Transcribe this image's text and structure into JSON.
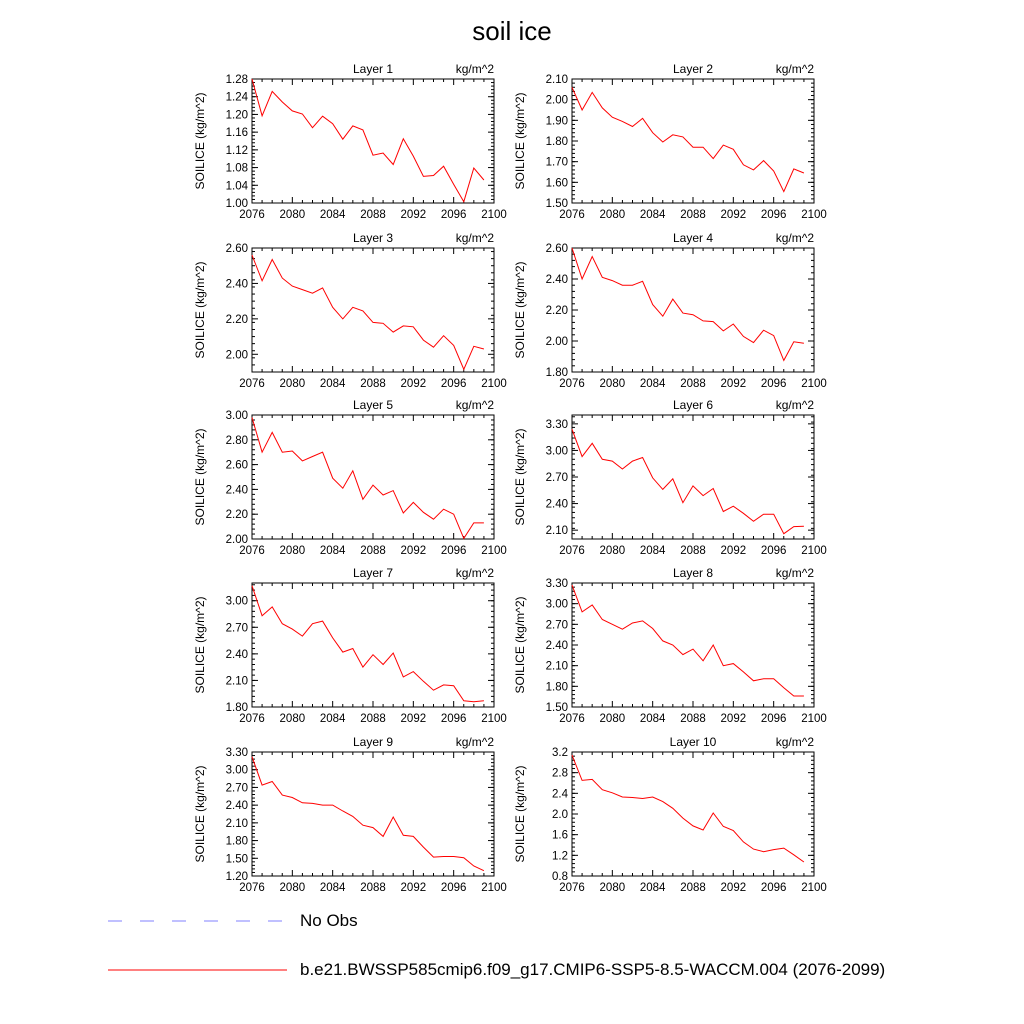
{
  "title": "soil ice",
  "colors": {
    "model_line": "#ff0000",
    "obs_line": "#8080ff",
    "axis": "#000000"
  },
  "legend": {
    "obs_label": "No Obs",
    "model_label": "b.e21.BWSSP585cmip6.f09_g17.CMIP6-SSP5-8.5-WACCM.004 (2076-2099)"
  },
  "chart_data": [
    {
      "type": "line",
      "title": "Layer 1",
      "units": "kg/m^2",
      "ylabel": "SOILICE  (kg/m^2)",
      "xlim": [
        2076,
        2100
      ],
      "xticks": [
        2076,
        2080,
        2084,
        2088,
        2092,
        2096,
        2100
      ],
      "ylim": [
        1.0,
        1.28
      ],
      "yticks": [
        "1.00",
        "1.04",
        "1.08",
        "1.12",
        "1.16",
        "1.20",
        "1.24",
        "1.28"
      ],
      "x": [
        2076,
        2077,
        2078,
        2079,
        2080,
        2081,
        2082,
        2083,
        2084,
        2085,
        2086,
        2087,
        2088,
        2089,
        2090,
        2091,
        2092,
        2093,
        2094,
        2095,
        2096,
        2097,
        2098,
        2099
      ],
      "values": [
        1.28,
        1.197,
        1.252,
        1.228,
        1.208,
        1.201,
        1.17,
        1.196,
        1.179,
        1.144,
        1.174,
        1.165,
        1.108,
        1.113,
        1.087,
        1.145,
        1.106,
        1.06,
        1.062,
        1.083,
        1.042,
        1.003,
        1.079,
        1.052
      ]
    },
    {
      "type": "line",
      "title": "Layer 2",
      "units": "kg/m^2",
      "ylabel": "SOILICE  (kg/m^2)",
      "xlim": [
        2076,
        2100
      ],
      "xticks": [
        2076,
        2080,
        2084,
        2088,
        2092,
        2096,
        2100
      ],
      "ylim": [
        1.5,
        2.1
      ],
      "yticks": [
        "1.50",
        "1.60",
        "1.70",
        "1.80",
        "1.90",
        "2.00",
        "2.10"
      ],
      "x": [
        2076,
        2077,
        2078,
        2079,
        2080,
        2081,
        2082,
        2083,
        2084,
        2085,
        2086,
        2087,
        2088,
        2089,
        2090,
        2091,
        2092,
        2093,
        2094,
        2095,
        2096,
        2097,
        2098,
        2099
      ],
      "values": [
        2.06,
        1.95,
        2.035,
        1.96,
        1.915,
        1.895,
        1.87,
        1.91,
        1.84,
        1.795,
        1.83,
        1.82,
        1.77,
        1.77,
        1.715,
        1.78,
        1.76,
        1.685,
        1.66,
        1.705,
        1.655,
        1.555,
        1.665,
        1.645
      ]
    },
    {
      "type": "line",
      "title": "Layer 3",
      "units": "kg/m^2",
      "ylabel": "SOILICE  (kg/m^2)",
      "xlim": [
        2076,
        2100
      ],
      "xticks": [
        2076,
        2080,
        2084,
        2088,
        2092,
        2096,
        2100
      ],
      "ylim": [
        1.9,
        2.6
      ],
      "yticks": [
        "2.00",
        "2.20",
        "2.40",
        "2.60"
      ],
      "x": [
        2076,
        2077,
        2078,
        2079,
        2080,
        2081,
        2082,
        2083,
        2084,
        2085,
        2086,
        2087,
        2088,
        2089,
        2090,
        2091,
        2092,
        2093,
        2094,
        2095,
        2096,
        2097,
        2098,
        2099
      ],
      "values": [
        2.56,
        2.415,
        2.535,
        2.43,
        2.385,
        2.365,
        2.345,
        2.375,
        2.265,
        2.2,
        2.265,
        2.245,
        2.18,
        2.175,
        2.125,
        2.16,
        2.155,
        2.08,
        2.04,
        2.105,
        2.05,
        1.915,
        2.045,
        2.03
      ]
    },
    {
      "type": "line",
      "title": "Layer 4",
      "units": "kg/m^2",
      "ylabel": "SOILICE  (kg/m^2)",
      "xlim": [
        2076,
        2100
      ],
      "xticks": [
        2076,
        2080,
        2084,
        2088,
        2092,
        2096,
        2100
      ],
      "ylim": [
        1.8,
        2.6
      ],
      "yticks": [
        "1.80",
        "2.00",
        "2.20",
        "2.40",
        "2.60"
      ],
      "x": [
        2076,
        2077,
        2078,
        2079,
        2080,
        2081,
        2082,
        2083,
        2084,
        2085,
        2086,
        2087,
        2088,
        2089,
        2090,
        2091,
        2092,
        2093,
        2094,
        2095,
        2096,
        2097,
        2098,
        2099
      ],
      "values": [
        2.6,
        2.4,
        2.545,
        2.41,
        2.39,
        2.36,
        2.36,
        2.385,
        2.235,
        2.16,
        2.27,
        2.18,
        2.17,
        2.13,
        2.125,
        2.065,
        2.11,
        2.03,
        1.99,
        2.07,
        2.035,
        1.875,
        1.995,
        1.985
      ]
    },
    {
      "type": "line",
      "title": "Layer 5",
      "units": "kg/m^2",
      "ylabel": "SOILICE  (kg/m^2)",
      "xlim": [
        2076,
        2100
      ],
      "xticks": [
        2076,
        2080,
        2084,
        2088,
        2092,
        2096,
        2100
      ],
      "ylim": [
        2.0,
        3.0
      ],
      "yticks": [
        "2.00",
        "2.20",
        "2.40",
        "2.60",
        "2.80",
        "3.00"
      ],
      "x": [
        2076,
        2077,
        2078,
        2079,
        2080,
        2081,
        2082,
        2083,
        2084,
        2085,
        2086,
        2087,
        2088,
        2089,
        2090,
        2091,
        2092,
        2093,
        2094,
        2095,
        2096,
        2097,
        2098,
        2099
      ],
      "values": [
        2.98,
        2.7,
        2.86,
        2.7,
        2.71,
        2.63,
        2.665,
        2.7,
        2.49,
        2.41,
        2.55,
        2.32,
        2.435,
        2.355,
        2.39,
        2.21,
        2.295,
        2.215,
        2.16,
        2.24,
        2.2,
        2.005,
        2.13,
        2.13
      ]
    },
    {
      "type": "line",
      "title": "Layer 6",
      "units": "kg/m^2",
      "ylabel": "SOILICE  (kg/m^2)",
      "xlim": [
        2076,
        2100
      ],
      "xticks": [
        2076,
        2080,
        2084,
        2088,
        2092,
        2096,
        2100
      ],
      "ylim": [
        2.0,
        3.4
      ],
      "yticks": [
        "2.10",
        "2.40",
        "2.70",
        "3.00",
        "3.30"
      ],
      "x": [
        2076,
        2077,
        2078,
        2079,
        2080,
        2081,
        2082,
        2083,
        2084,
        2085,
        2086,
        2087,
        2088,
        2089,
        2090,
        2091,
        2092,
        2093,
        2094,
        2095,
        2096,
        2097,
        2098,
        2099
      ],
      "values": [
        3.24,
        2.93,
        3.08,
        2.9,
        2.88,
        2.79,
        2.88,
        2.92,
        2.69,
        2.56,
        2.68,
        2.41,
        2.6,
        2.49,
        2.57,
        2.31,
        2.37,
        2.29,
        2.2,
        2.28,
        2.28,
        2.06,
        2.14,
        2.145
      ]
    },
    {
      "type": "line",
      "title": "Layer 7",
      "units": "kg/m^2",
      "ylabel": "SOILICE  (kg/m^2)",
      "xlim": [
        2076,
        2100
      ],
      "xticks": [
        2076,
        2080,
        2084,
        2088,
        2092,
        2096,
        2100
      ],
      "ylim": [
        1.8,
        3.2
      ],
      "yticks": [
        "1.80",
        "2.10",
        "2.40",
        "2.70",
        "3.00"
      ],
      "x": [
        2076,
        2077,
        2078,
        2079,
        2080,
        2081,
        2082,
        2083,
        2084,
        2085,
        2086,
        2087,
        2088,
        2089,
        2090,
        2091,
        2092,
        2093,
        2094,
        2095,
        2096,
        2097,
        2098,
        2099
      ],
      "values": [
        3.17,
        2.83,
        2.93,
        2.74,
        2.68,
        2.6,
        2.74,
        2.77,
        2.58,
        2.42,
        2.46,
        2.25,
        2.39,
        2.28,
        2.41,
        2.14,
        2.2,
        2.09,
        1.99,
        2.05,
        2.04,
        1.87,
        1.86,
        1.87
      ]
    },
    {
      "type": "line",
      "title": "Layer 8",
      "units": "kg/m^2",
      "ylabel": "SOILICE  (kg/m^2)",
      "xlim": [
        2076,
        2100
      ],
      "xticks": [
        2076,
        2080,
        2084,
        2088,
        2092,
        2096,
        2100
      ],
      "ylim": [
        1.5,
        3.3
      ],
      "yticks": [
        "1.50",
        "1.80",
        "2.10",
        "2.40",
        "2.70",
        "3.00",
        "3.30"
      ],
      "x": [
        2076,
        2077,
        2078,
        2079,
        2080,
        2081,
        2082,
        2083,
        2084,
        2085,
        2086,
        2087,
        2088,
        2089,
        2090,
        2091,
        2092,
        2093,
        2094,
        2095,
        2096,
        2097,
        2098,
        2099
      ],
      "values": [
        3.27,
        2.88,
        2.98,
        2.77,
        2.7,
        2.63,
        2.72,
        2.75,
        2.64,
        2.46,
        2.4,
        2.26,
        2.34,
        2.17,
        2.4,
        2.1,
        2.13,
        2.01,
        1.88,
        1.91,
        1.91,
        1.78,
        1.66,
        1.66
      ]
    },
    {
      "type": "line",
      "title": "Layer 9",
      "units": "kg/m^2",
      "ylabel": "SOILICE  (kg/m^2)",
      "xlim": [
        2076,
        2100
      ],
      "xticks": [
        2076,
        2080,
        2084,
        2088,
        2092,
        2096,
        2100
      ],
      "ylim": [
        1.2,
        3.3
      ],
      "yticks": [
        "1.20",
        "1.50",
        "1.80",
        "2.10",
        "2.40",
        "2.70",
        "3.00",
        "3.30"
      ],
      "x": [
        2076,
        2077,
        2078,
        2079,
        2080,
        2081,
        2082,
        2083,
        2084,
        2085,
        2086,
        2087,
        2088,
        2089,
        2090,
        2091,
        2092,
        2093,
        2094,
        2095,
        2096,
        2097,
        2098,
        2099
      ],
      "values": [
        3.22,
        2.74,
        2.8,
        2.57,
        2.53,
        2.44,
        2.43,
        2.4,
        2.4,
        2.3,
        2.21,
        2.06,
        2.02,
        1.87,
        2.2,
        1.89,
        1.87,
        1.69,
        1.52,
        1.53,
        1.53,
        1.51,
        1.37,
        1.29
      ]
    },
    {
      "type": "line",
      "title": "Layer 10",
      "units": "kg/m^2",
      "ylabel": "SOILICE  (kg/m^2)",
      "xlim": [
        2076,
        2100
      ],
      "xticks": [
        2076,
        2080,
        2084,
        2088,
        2092,
        2096,
        2100
      ],
      "ylim": [
        0.8,
        3.2
      ],
      "yticks": [
        "0.8",
        "1.2",
        "1.6",
        "2.0",
        "2.4",
        "2.8",
        "3.2"
      ],
      "x": [
        2076,
        2077,
        2078,
        2079,
        2080,
        2081,
        2082,
        2083,
        2084,
        2085,
        2086,
        2087,
        2088,
        2089,
        2090,
        2091,
        2092,
        2093,
        2094,
        2095,
        2096,
        2097,
        2098,
        2099
      ],
      "values": [
        3.14,
        2.65,
        2.67,
        2.47,
        2.41,
        2.33,
        2.32,
        2.3,
        2.33,
        2.24,
        2.11,
        1.92,
        1.77,
        1.69,
        2.02,
        1.76,
        1.68,
        1.46,
        1.32,
        1.27,
        1.31,
        1.34,
        1.21,
        1.07
      ]
    }
  ]
}
